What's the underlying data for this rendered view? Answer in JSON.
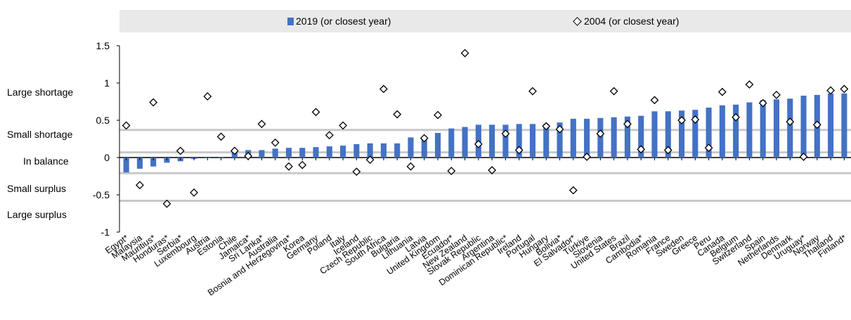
{
  "chart_data": {
    "type": "bar",
    "legend": [
      {
        "name": "2019 (or closest year)",
        "marker": "bar",
        "color": "#4472c4"
      },
      {
        "name": "2004 (or closest year)",
        "marker": "diamond",
        "color": "#000000"
      }
    ],
    "legend_position": "top",
    "ylim": [
      -1,
      1.5
    ],
    "yticks": [
      "1.5",
      "1",
      "0.5",
      "0",
      "-0.5",
      "-1"
    ],
    "ytick_values": [
      1.5,
      1,
      0.5,
      0,
      -0.5,
      -1
    ],
    "band_labels": [
      "Large shortage",
      "Small shortage",
      "In balance",
      "Small surplus",
      "Large surplus"
    ],
    "reference_lines": [
      0.37,
      0.07,
      -0.21,
      -0.58
    ],
    "categories": [
      "Egypt*",
      "Malaysia",
      "Mauritius*",
      "Honduras*",
      "Serbia*",
      "Luxembourg",
      "Austria",
      "Estonia",
      "Chile",
      "Jamaica*",
      "Sri Lanka*",
      "Australia",
      "Bosnia and Herzegovina*",
      "Korea",
      "Germany",
      "Poland",
      "Italy",
      "Iceland",
      "Czech Republic",
      "South Africa",
      "Bulgaria",
      "Lithuania",
      "Latvia",
      "United Kingdom",
      "Ecuador*",
      "New Zealand",
      "Slovak Republic",
      "Argentina",
      "Dominican Republic*",
      "Ireland",
      "Portugal",
      "Hungary",
      "Bolivia*",
      "El Salvador*",
      "Türkiye",
      "Slovenia",
      "United States",
      "Brazil",
      "Cambodia*",
      "Romania",
      "France",
      "Sweden",
      "Greece",
      "Peru",
      "Canada",
      "Belgium",
      "Switzerland",
      "Spain",
      "Netherlands",
      "Denmark",
      "Uruguay*",
      "Norway",
      "Thailand",
      "Finland*"
    ],
    "series": [
      {
        "name": "2019 (or closest year)",
        "type": "bar",
        "values": [
          -0.2,
          -0.15,
          -0.12,
          -0.07,
          -0.05,
          -0.02,
          0.0,
          0.01,
          0.08,
          0.1,
          0.1,
          0.12,
          0.13,
          0.13,
          0.14,
          0.15,
          0.16,
          0.18,
          0.19,
          0.19,
          0.19,
          0.27,
          0.28,
          0.33,
          0.39,
          0.41,
          0.44,
          0.44,
          0.44,
          0.45,
          0.45,
          0.45,
          0.47,
          0.52,
          0.52,
          0.53,
          0.54,
          0.55,
          0.56,
          0.62,
          0.62,
          0.63,
          0.64,
          0.67,
          0.7,
          0.71,
          0.74,
          0.77,
          0.78,
          0.79,
          0.83,
          0.84,
          0.86,
          0.86
        ]
      },
      {
        "name": "2004 (or closest year)",
        "type": "scatter",
        "values": [
          0.43,
          -0.37,
          0.74,
          -0.62,
          0.09,
          -0.47,
          0.82,
          0.28,
          0.09,
          0.02,
          0.45,
          0.2,
          -0.12,
          -0.1,
          0.61,
          0.3,
          0.43,
          -0.19,
          -0.03,
          0.92,
          0.58,
          -0.12,
          0.26,
          0.57,
          -0.18,
          1.4,
          0.18,
          -0.17,
          0.32,
          0.1,
          0.89,
          0.42,
          0.38,
          -0.44,
          0.01,
          0.32,
          0.89,
          0.45,
          0.11,
          0.77,
          0.1,
          0.5,
          0.51,
          0.13,
          0.88,
          0.54,
          0.98,
          0.73,
          0.84,
          0.48,
          0.01,
          0.44,
          0.9,
          0.92
        ]
      }
    ]
  }
}
